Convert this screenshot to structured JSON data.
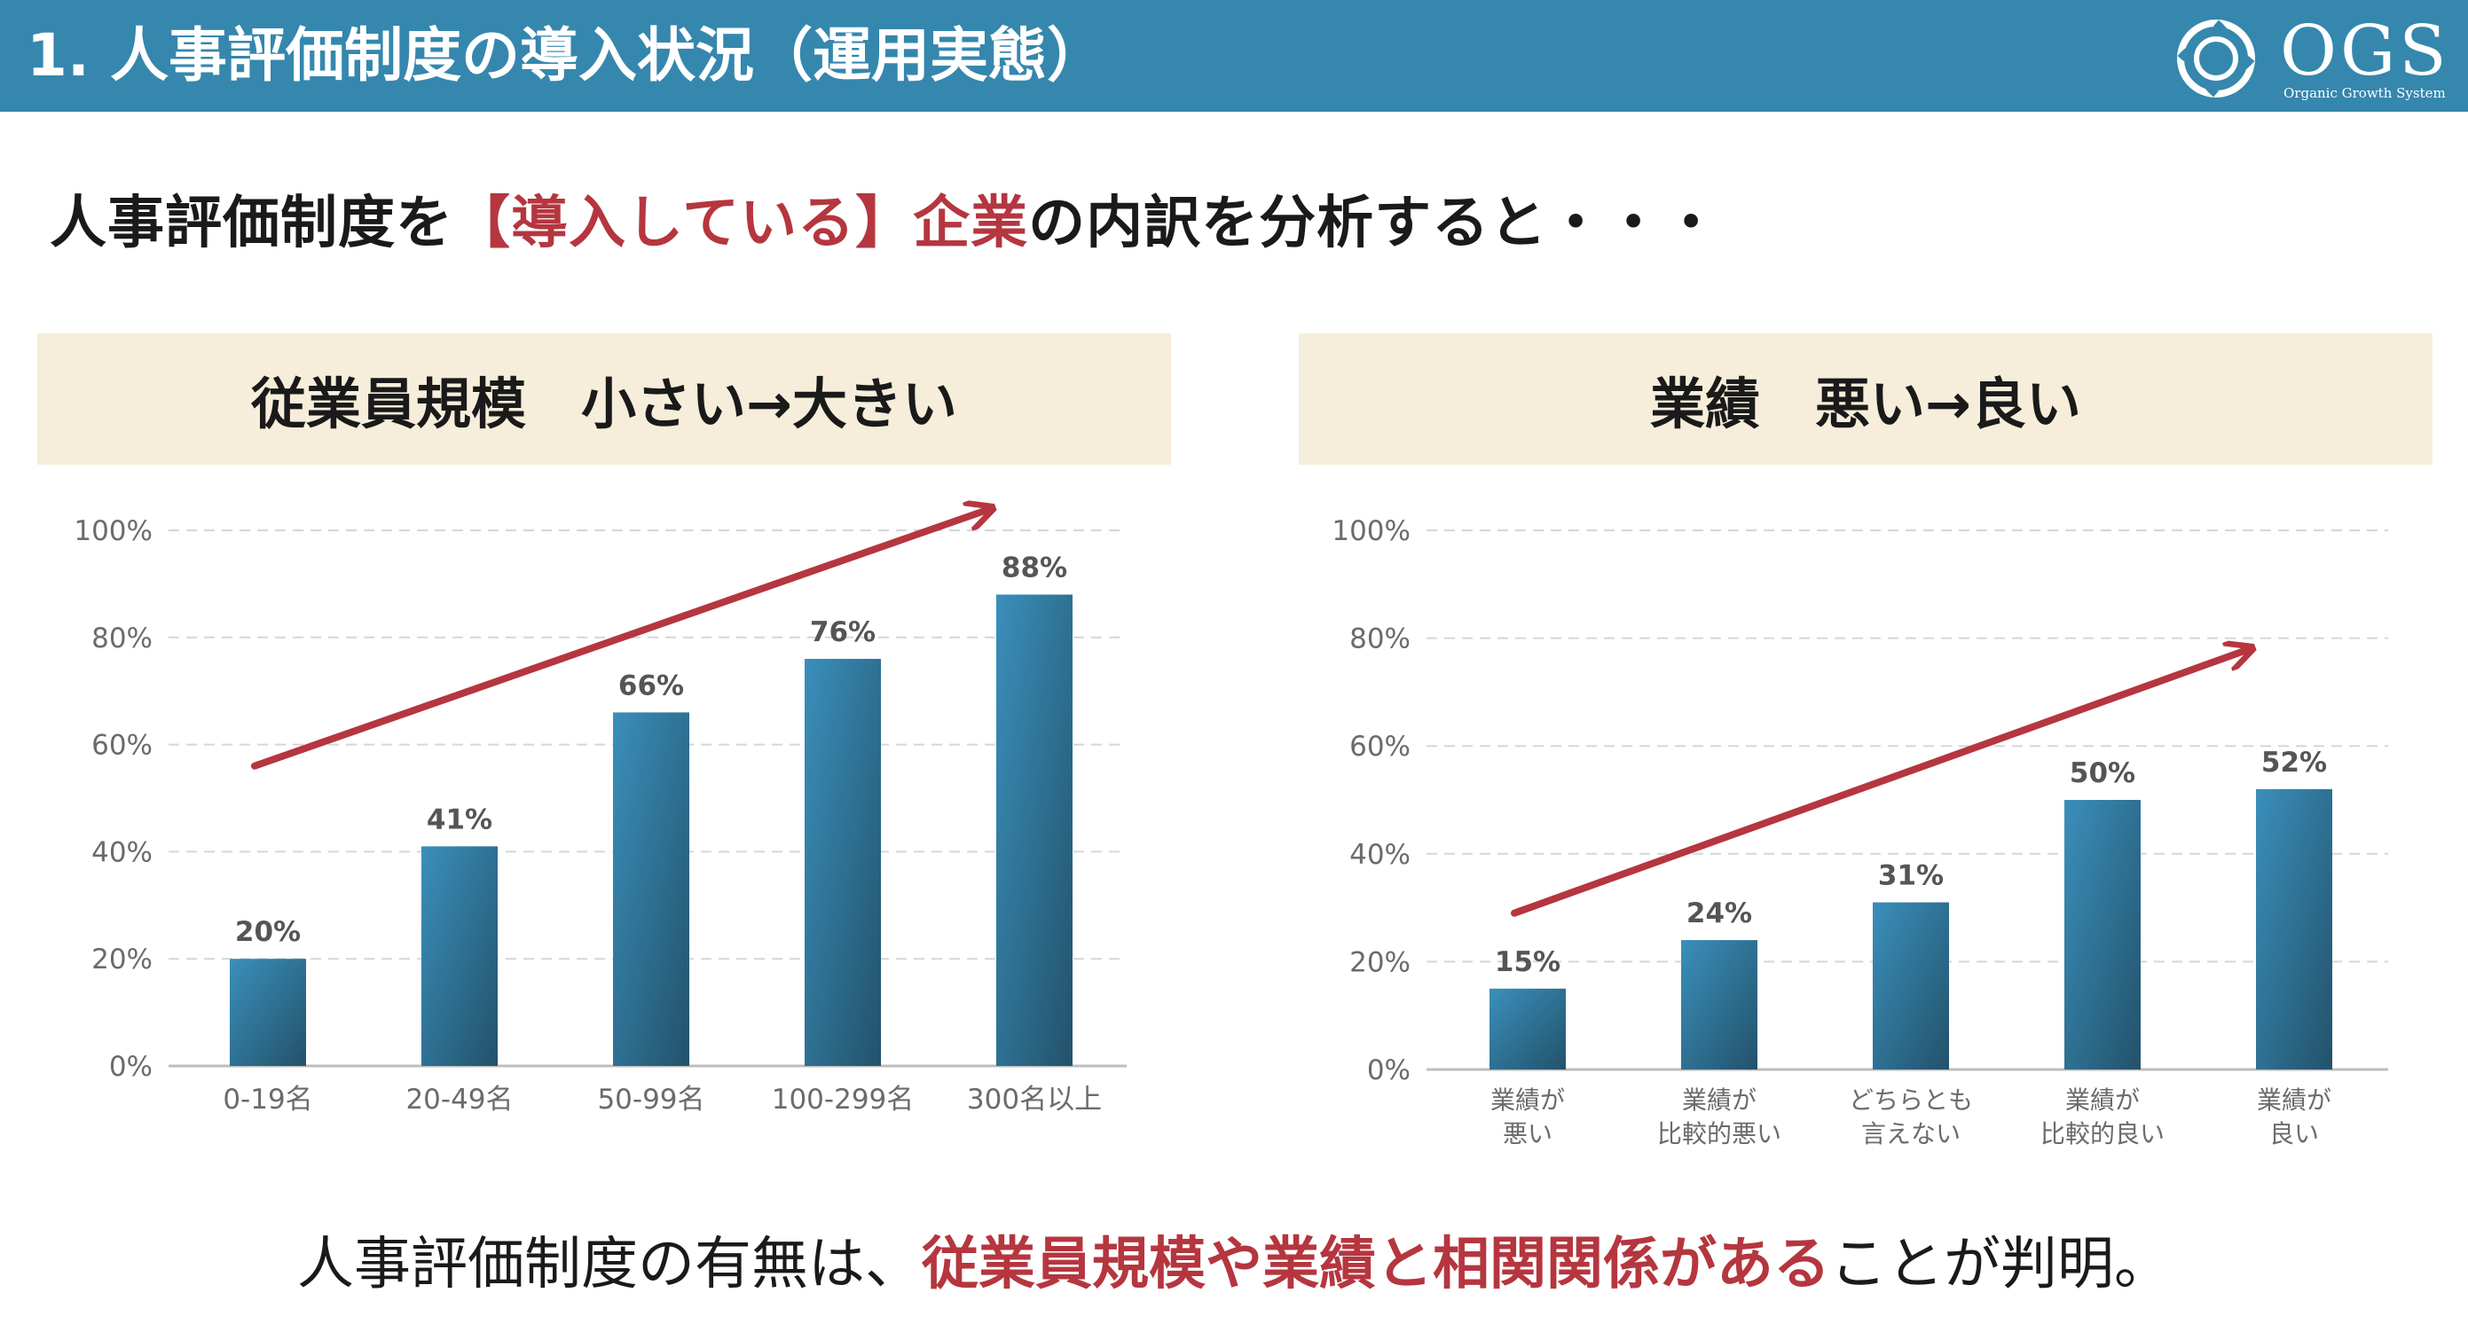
{
  "header": {
    "title": "1. 人事評価制度の導入状況（運用実態）",
    "logo_text": "OGS",
    "logo_sub": "Organic Growth System"
  },
  "headline": {
    "pre": "人事評価制度を",
    "highlight": "【導入している】企業",
    "post": "の内訳を分析すると・・・"
  },
  "footer": {
    "pre": "人事評価制度の有無は、",
    "highlight": "従業員規模や業績と相関関係がある",
    "post": "ことが判明。"
  },
  "colors": {
    "header_bg": "#3587ad",
    "accent": "#b5363f",
    "panel_bg": "#f6eedb",
    "bar_top": "#3a8fbb",
    "bar_bottom": "#23526b",
    "grid": "#d6d6d6",
    "axis_text": "#6b6b6b",
    "arrow": "#b5363f"
  },
  "chart_data": [
    {
      "type": "bar",
      "title": "従業員規模　小さい→大きい",
      "categories": [
        "0-19名",
        "20-49名",
        "50-99名",
        "100-299名",
        "300名以上"
      ],
      "values": [
        20,
        41,
        66,
        76,
        88
      ],
      "value_labels": [
        "20%",
        "41%",
        "66%",
        "76%",
        "88%"
      ],
      "ylim": [
        0,
        100
      ],
      "yticks": [
        "0%",
        "20%",
        "40%",
        "60%",
        "80%",
        "100%"
      ],
      "ytick_values": [
        0,
        20,
        40,
        60,
        80,
        100
      ],
      "grid": true,
      "trend_arrow": {
        "from": [
          0,
          56
        ],
        "to": [
          4,
          104
        ]
      }
    },
    {
      "type": "bar",
      "title": "業績　悪い→良い",
      "categories": [
        [
          "業績が",
          "悪い"
        ],
        [
          "業績が",
          "比較的悪い"
        ],
        [
          "どちらとも",
          "言えない"
        ],
        [
          "業績が",
          "比較的良い"
        ],
        [
          "業績が",
          "良い"
        ]
      ],
      "values": [
        15,
        24,
        31,
        50,
        52
      ],
      "value_labels": [
        "15%",
        "24%",
        "31%",
        "50%",
        "52%"
      ],
      "ylim": [
        0,
        100
      ],
      "yticks": [
        "0%",
        "20%",
        "40%",
        "60%",
        "80%",
        "100%"
      ],
      "ytick_values": [
        0,
        20,
        40,
        60,
        80,
        100
      ],
      "grid": true,
      "trend_arrow": {
        "from": [
          0,
          29
        ],
        "to": [
          4,
          78
        ]
      }
    }
  ]
}
